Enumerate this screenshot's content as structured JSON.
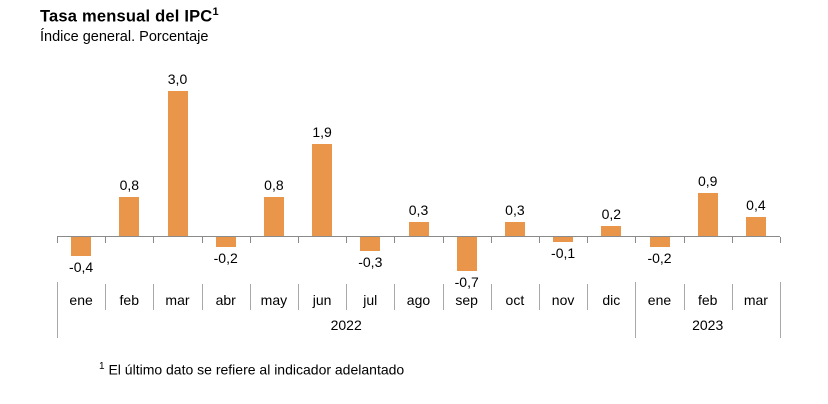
{
  "header": {
    "title": "Tasa mensual del IPC",
    "title_superscript": "1",
    "subtitle": "Índice general. Porcentaje"
  },
  "chart_data": {
    "type": "bar",
    "title": "Tasa mensual del IPC",
    "subtitle": "Índice general. Porcentaje",
    "categories": [
      "ene",
      "feb",
      "mar",
      "abr",
      "may",
      "jun",
      "jul",
      "ago",
      "sep",
      "oct",
      "nov",
      "dic",
      "ene",
      "feb",
      "mar"
    ],
    "values": [
      -0.4,
      0.8,
      3.0,
      -0.2,
      0.8,
      1.9,
      -0.3,
      0.3,
      -0.7,
      0.3,
      -0.1,
      0.2,
      -0.2,
      0.9,
      0.4
    ],
    "value_labels": [
      "-0,4",
      "0,8",
      "3,0",
      "-0,2",
      "0,8",
      "1,9",
      "-0,3",
      "0,3",
      "-0,7",
      "0,3",
      "-0,1",
      "0,2",
      "-0,2",
      "0,9",
      "0,4"
    ],
    "groups": [
      {
        "label": "2022",
        "start": 0,
        "count": 12
      },
      {
        "label": "2023",
        "start": 12,
        "count": 3
      }
    ],
    "ylim": [
      -1.0,
      3.3
    ],
    "grid": false,
    "legend_position": "none",
    "bar_color": "#E9964A",
    "axis_color": "#8A8A8A",
    "divider_color": "#A8A8A8",
    "label_color": "#000000"
  },
  "footnote": {
    "superscript": "1",
    "text": "El último dato se refiere al indicador adelantado"
  }
}
